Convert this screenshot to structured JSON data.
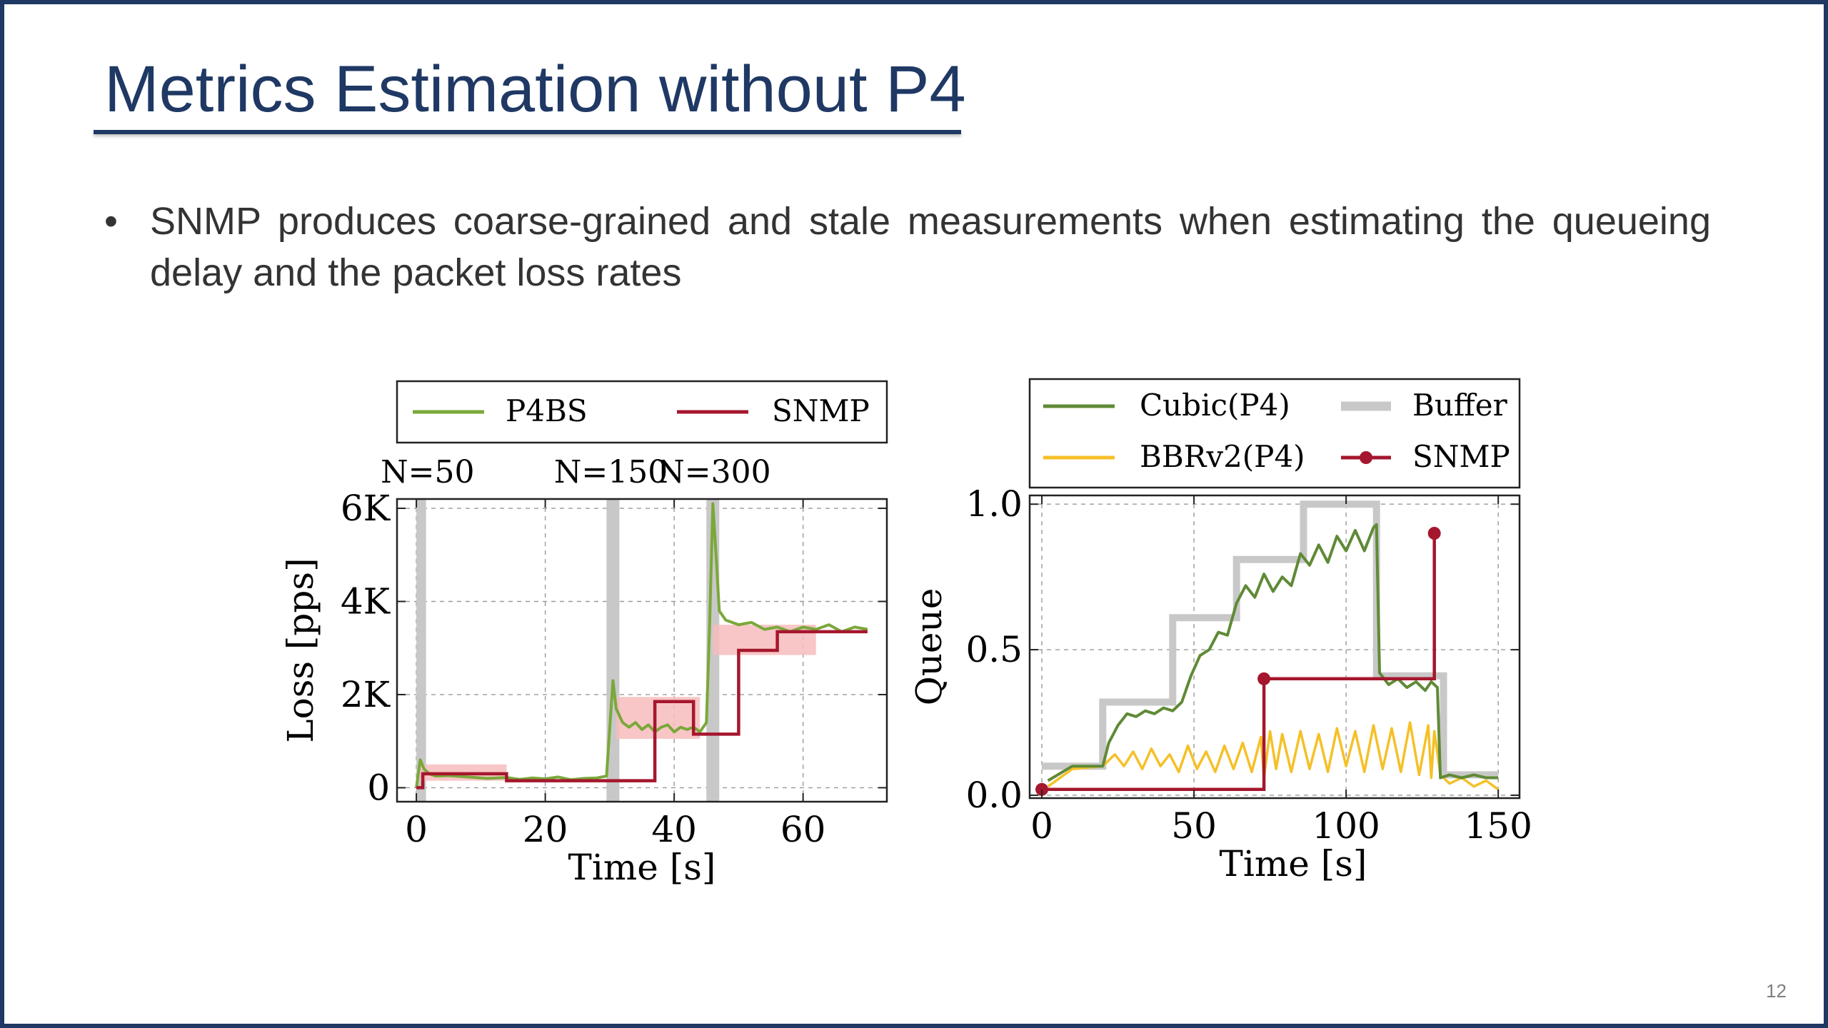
{
  "slide": {
    "title": "Metrics Estimation without P4",
    "bullet": "SNMP produces coarse-grained and stale measurements when estimating the queueing delay and the packet loss rates",
    "page_number": "12"
  },
  "colors": {
    "title": "#1f3864",
    "p4bs": "#7aa83a",
    "snmp": "#a5172e",
    "cubic": "#5f8a36",
    "bbr": "#f5c028",
    "buffer": "#c8c8c8",
    "band": "#f7bcbc"
  },
  "chart_data": [
    {
      "type": "line",
      "xlabel": "Time [s]",
      "ylabel": "Loss [pps]",
      "xlim": [
        -3,
        73
      ],
      "ylim": [
        -300,
        6200
      ],
      "xticks": [
        0,
        20,
        40,
        60
      ],
      "xtick_labels": [
        "0",
        "20",
        "40",
        "60"
      ],
      "yticks": [
        0,
        2000,
        4000,
        6000
      ],
      "ytick_labels": [
        "0",
        "2K",
        "4K",
        "6K"
      ],
      "grid": true,
      "legend": "top, outside plot, one row",
      "annotations": [
        {
          "text": "N=50",
          "x": 0
        },
        {
          "text": "N=150",
          "x": 30
        },
        {
          "text": "N=300",
          "x": 46
        }
      ],
      "event_bands": [
        [
          0,
          1.5
        ],
        [
          29.5,
          31.5
        ],
        [
          45,
          47
        ]
      ],
      "error_bands": [
        [
          0.5,
          14,
          150,
          500
        ],
        [
          31,
          44,
          1050,
          1950
        ],
        [
          46,
          62,
          2850,
          3500
        ]
      ],
      "series": [
        {
          "name": "P4BS",
          "x": [
            0,
            0.6,
            1.2,
            2,
            3,
            5,
            8,
            11,
            14,
            16,
            18,
            20,
            22,
            24,
            26,
            28,
            29.5,
            30.5,
            31,
            32,
            33,
            34,
            35,
            36,
            37,
            38,
            39,
            40,
            41,
            42,
            43,
            44,
            45,
            45.5,
            46,
            46.5,
            47,
            48,
            50,
            52,
            54,
            56,
            58,
            60,
            62,
            64,
            66,
            68,
            70
          ],
          "y": [
            0,
            600,
            400,
            300,
            250,
            260,
            230,
            200,
            220,
            180,
            210,
            190,
            230,
            170,
            200,
            210,
            250,
            2300,
            1700,
            1400,
            1300,
            1400,
            1250,
            1350,
            1200,
            1300,
            1350,
            1200,
            1300,
            1250,
            1300,
            1200,
            1400,
            3500,
            6100,
            5000,
            3800,
            3600,
            3500,
            3550,
            3400,
            3450,
            3350,
            3450,
            3400,
            3500,
            3350,
            3450,
            3400
          ]
        },
        {
          "name": "SNMP",
          "x": [
            0,
            1,
            1,
            14,
            14,
            37,
            37,
            43,
            43,
            50,
            50,
            56,
            56,
            70
          ],
          "y": [
            0,
            0,
            300,
            300,
            150,
            150,
            1850,
            1850,
            1150,
            1150,
            2950,
            2950,
            3350,
            3350
          ]
        }
      ]
    },
    {
      "type": "line",
      "xlabel": "Time [s]",
      "ylabel": "Queue",
      "xlim": [
        -4,
        157
      ],
      "ylim": [
        -0.01,
        1.03
      ],
      "xticks": [
        0,
        50,
        100,
        150
      ],
      "xtick_labels": [
        "0",
        "50",
        "100",
        "150"
      ],
      "yticks": [
        0,
        0.5,
        1
      ],
      "ytick_labels": [
        "0.0",
        "0.5",
        "1.0"
      ],
      "grid": true,
      "legend": "top, outside plot, two columns",
      "series": [
        {
          "name": "Cubic(P4)",
          "x": [
            2,
            10,
            20,
            22,
            25,
            28,
            31,
            34,
            37,
            40,
            43,
            46,
            49,
            52,
            55,
            58,
            61,
            64,
            67,
            70,
            73,
            76,
            79,
            82,
            85,
            88,
            91,
            94,
            97,
            100,
            103,
            106,
            109,
            110,
            111,
            114,
            117,
            120,
            123,
            126,
            128,
            130,
            131,
            134,
            138,
            142,
            146,
            150
          ],
          "y": [
            0.05,
            0.1,
            0.1,
            0.18,
            0.24,
            0.28,
            0.27,
            0.29,
            0.28,
            0.3,
            0.29,
            0.32,
            0.41,
            0.48,
            0.5,
            0.56,
            0.55,
            0.66,
            0.72,
            0.68,
            0.76,
            0.7,
            0.75,
            0.72,
            0.83,
            0.79,
            0.86,
            0.8,
            0.89,
            0.84,
            0.91,
            0.84,
            0.92,
            0.93,
            0.42,
            0.38,
            0.4,
            0.37,
            0.39,
            0.36,
            0.39,
            0.37,
            0.06,
            0.07,
            0.06,
            0.07,
            0.06,
            0.06
          ]
        },
        {
          "name": "BBRv2(P4)",
          "x": [
            2,
            10,
            20,
            24,
            27,
            30,
            33,
            36,
            39,
            42,
            45,
            48,
            51,
            54,
            57,
            60,
            63,
            66,
            69,
            72,
            73,
            75,
            77,
            79,
            82,
            85,
            88,
            91,
            94,
            97,
            100,
            103,
            106,
            109,
            112,
            115,
            118,
            121,
            124,
            127,
            128,
            129,
            131,
            134,
            138,
            142,
            146,
            150
          ],
          "y": [
            0.03,
            0.09,
            0.1,
            0.14,
            0.1,
            0.15,
            0.09,
            0.16,
            0.1,
            0.14,
            0.08,
            0.17,
            0.09,
            0.15,
            0.08,
            0.17,
            0.09,
            0.18,
            0.08,
            0.2,
            0.06,
            0.22,
            0.09,
            0.21,
            0.08,
            0.22,
            0.09,
            0.21,
            0.08,
            0.23,
            0.1,
            0.22,
            0.08,
            0.24,
            0.09,
            0.23,
            0.08,
            0.25,
            0.07,
            0.24,
            0.06,
            0.22,
            0.07,
            0.04,
            0.06,
            0.03,
            0.05,
            0.02
          ]
        },
        {
          "name": "Buffer",
          "x": [
            0,
            20,
            20,
            43,
            43,
            64,
            64,
            86,
            86,
            110,
            110,
            132,
            132,
            150
          ],
          "y": [
            0.1,
            0.1,
            0.32,
            0.32,
            0.61,
            0.61,
            0.81,
            0.81,
            1.0,
            1.0,
            0.41,
            0.41,
            0.07,
            0.07
          ]
        },
        {
          "name": "SNMP",
          "x": [
            0,
            73,
            73,
            129,
            129
          ],
          "y": [
            0.02,
            0.02,
            0.4,
            0.4,
            0.9
          ],
          "markers": [
            [
              0,
              0.02
            ],
            [
              73,
              0.4
            ],
            [
              129,
              0.9
            ]
          ]
        }
      ]
    }
  ]
}
